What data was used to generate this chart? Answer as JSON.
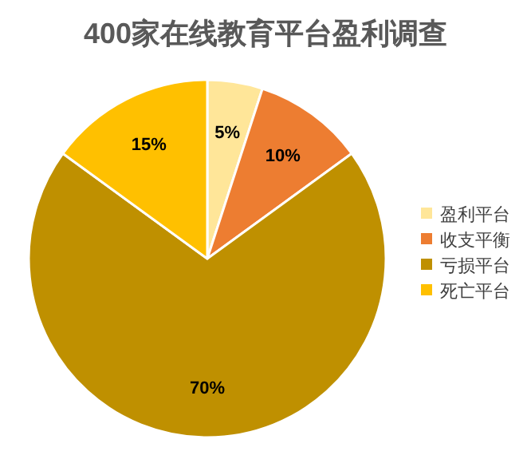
{
  "chart_data": {
    "type": "pie",
    "title": "400家在线教育平台盈利调查",
    "categories": [
      "盈利平台",
      "收支平衡",
      "亏损平台",
      "死亡平台"
    ],
    "values": [
      5,
      10,
      70,
      15
    ],
    "colors": [
      "#ffe699",
      "#ed7d31",
      "#bf9000",
      "#ffc000"
    ],
    "value_labels": [
      "5%",
      "10%",
      "70%",
      "15%"
    ],
    "legend": "right"
  }
}
